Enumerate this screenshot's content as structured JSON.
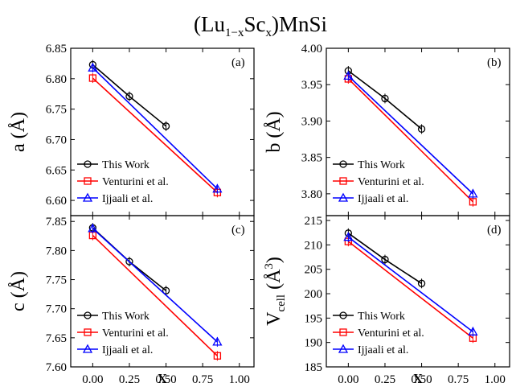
{
  "figure": {
    "title_main": "(Lu",
    "title_sub1": "1−x",
    "title_mid": "Sc",
    "title_sub2": "x",
    "title_end": ")MnSi"
  },
  "colors": {
    "this_work": "#000000",
    "venturini": "#ff0000",
    "ijjaali": "#0000ff"
  },
  "chart_data": [
    {
      "type": "line",
      "panel": "(a)",
      "ylabel": "a (Å)",
      "xlabel": "",
      "xlim": [
        -0.15,
        1.1
      ],
      "ylim": [
        6.575,
        6.85
      ],
      "xticks": [
        "0.00",
        "0.25",
        "0.50",
        "0.75",
        "1.00"
      ],
      "yticks": [
        "6.60",
        "6.65",
        "6.70",
        "6.75",
        "6.80",
        "6.85"
      ],
      "yticks_values": [
        6.6,
        6.65,
        6.7,
        6.75,
        6.8,
        6.85
      ],
      "legend": "bottom-left",
      "series": [
        {
          "name": "This Work",
          "marker": "circle",
          "color": "#000000",
          "x": [
            0.0,
            0.25,
            0.5
          ],
          "y": [
            6.823,
            6.771,
            6.722
          ]
        },
        {
          "name": "Venturini et al.",
          "marker": "square",
          "color": "#ff0000",
          "x": [
            0.0,
            0.85
          ],
          "y": [
            6.801,
            6.613
          ]
        },
        {
          "name": "Ijjaali et al.",
          "marker": "triangle",
          "color": "#0000ff",
          "x": [
            0.0,
            0.85
          ],
          "y": [
            6.818,
            6.619
          ]
        }
      ]
    },
    {
      "type": "line",
      "panel": "(b)",
      "ylabel": "b (Å)",
      "xlabel": "",
      "xlim": [
        -0.15,
        1.1
      ],
      "ylim": [
        3.77,
        4.0
      ],
      "xticks": [
        "0.00",
        "0.25",
        "0.50",
        "0.75",
        "1.00"
      ],
      "yticks": [
        "3.80",
        "3.85",
        "3.90",
        "3.95",
        "4.00"
      ],
      "yticks_values": [
        3.8,
        3.85,
        3.9,
        3.95,
        4.0
      ],
      "legend": "bottom-left",
      "series": [
        {
          "name": "This Work",
          "marker": "circle",
          "color": "#000000",
          "x": [
            0.0,
            0.25,
            0.5
          ],
          "y": [
            3.969,
            3.931,
            3.889
          ]
        },
        {
          "name": "Venturini et al.",
          "marker": "square",
          "color": "#ff0000",
          "x": [
            0.0,
            0.85
          ],
          "y": [
            3.958,
            3.789
          ]
        },
        {
          "name": "Ijjaali et al.",
          "marker": "triangle",
          "color": "#0000ff",
          "x": [
            0.0,
            0.85
          ],
          "y": [
            3.962,
            3.8
          ]
        }
      ]
    },
    {
      "type": "line",
      "panel": "(c)",
      "ylabel": "c (Å)",
      "xlabel": "x",
      "xlim": [
        -0.15,
        1.1
      ],
      "ylim": [
        7.6,
        7.86
      ],
      "xticks": [
        "0.00",
        "0.25",
        "0.50",
        "0.75",
        "1.00"
      ],
      "yticks": [
        "7.60",
        "7.65",
        "7.70",
        "7.75",
        "7.80",
        "7.85"
      ],
      "yticks_values": [
        7.6,
        7.65,
        7.7,
        7.75,
        7.8,
        7.85
      ],
      "legend": "bottom-left",
      "series": [
        {
          "name": "This Work",
          "marker": "circle",
          "color": "#000000",
          "x": [
            0.0,
            0.25,
            0.5
          ],
          "y": [
            7.839,
            7.781,
            7.731
          ]
        },
        {
          "name": "Venturini et al.",
          "marker": "square",
          "color": "#ff0000",
          "x": [
            0.0,
            0.85
          ],
          "y": [
            7.826,
            7.619
          ]
        },
        {
          "name": "Ijjaali et al.",
          "marker": "triangle",
          "color": "#0000ff",
          "x": [
            0.0,
            0.85
          ],
          "y": [
            7.838,
            7.643
          ]
        }
      ]
    },
    {
      "type": "line",
      "panel": "(d)",
      "ylabel_main": "V",
      "ylabel_sub": "cell",
      "ylabel_mid": " (Å",
      "ylabel_sup": "3",
      "ylabel_end": ")",
      "xlabel": "x",
      "xlim": [
        -0.15,
        1.1
      ],
      "ylim": [
        185,
        216
      ],
      "xticks": [
        "0.00",
        "0.25",
        "0.50",
        "0.75",
        "1.00"
      ],
      "yticks": [
        "185",
        "190",
        "195",
        "200",
        "205",
        "210",
        "215"
      ],
      "yticks_values": [
        185,
        190,
        195,
        200,
        205,
        210,
        215
      ],
      "legend": "bottom-left",
      "series": [
        {
          "name": "This Work",
          "marker": "circle",
          "color": "#000000",
          "x": [
            0.0,
            0.25,
            0.5
          ],
          "y": [
            212.4,
            207.0,
            202.1
          ]
        },
        {
          "name": "Venturini et al.",
          "marker": "square",
          "color": "#ff0000",
          "x": [
            0.0,
            0.85
          ],
          "y": [
            210.7,
            190.9
          ]
        },
        {
          "name": "Ijjaali et al.",
          "marker": "triangle",
          "color": "#0000ff",
          "x": [
            0.0,
            0.85
          ],
          "y": [
            211.6,
            192.2
          ]
        }
      ]
    }
  ]
}
